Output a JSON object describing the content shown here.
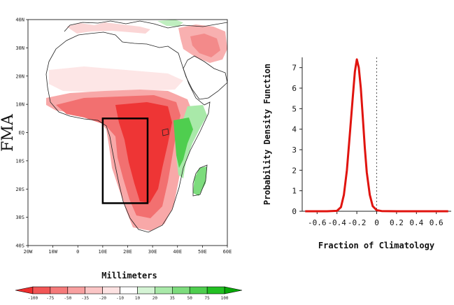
{
  "chart_data": [
    {
      "type": "map",
      "season_label": "FMA",
      "lon_ticks": [
        "20W",
        "10W",
        "0",
        "10E",
        "20E",
        "30E",
        "40E",
        "50E",
        "60E"
      ],
      "lat_ticks": [
        "40N",
        "30N",
        "20N",
        "10N",
        "EQ",
        "10S",
        "20S",
        "30S",
        "40S"
      ],
      "lon_range": [
        -20,
        60
      ],
      "lat_range": [
        -40,
        40
      ],
      "box_region": {
        "lon": [
          10,
          28
        ],
        "lat": [
          -25,
          5
        ]
      },
      "units_label": "Millimeters",
      "colorbar": {
        "ticks": [
          "-100",
          "-75",
          "-50",
          "-35",
          "-20",
          "-10",
          "10",
          "20",
          "35",
          "50",
          "75",
          "100"
        ],
        "colors": [
          "#ee2d2d",
          "#f25656",
          "#f57a7a",
          "#f8a0a0",
          "#fbc6c6",
          "#fde2e2",
          "#ffffff",
          "#d5f4d5",
          "#a9e9a9",
          "#7ddc7d",
          "#4fce4f",
          "#22c022",
          "#07a807"
        ]
      }
    },
    {
      "type": "line",
      "title": "",
      "xlabel": "Fraction of Climatology",
      "ylabel": "Probability Density Function",
      "xlim": [
        -0.75,
        0.75
      ],
      "ylim": [
        0,
        7.5
      ],
      "xticks": [
        -0.6,
        -0.4,
        -0.2,
        0,
        0.2,
        0.4,
        0.6
      ],
      "xtick_labels": [
        "-0.6",
        "-0.4",
        "-0.2",
        "0",
        "0.2",
        "0.4",
        "0.6"
      ],
      "yticks": [
        0,
        1,
        2,
        3,
        4,
        5,
        6,
        7
      ],
      "ytick_labels": [
        "0",
        "1",
        "2",
        "3",
        "4",
        "5",
        "6",
        "7"
      ],
      "series": [
        {
          "name": "PDF",
          "color": "#e0140f",
          "x": [
            -0.72,
            -0.5,
            -0.4,
            -0.36,
            -0.33,
            -0.3,
            -0.27,
            -0.24,
            -0.22,
            -0.2,
            -0.18,
            -0.16,
            -0.14,
            -0.12,
            -0.1,
            -0.07,
            -0.04,
            0.0,
            0.05,
            0.2,
            0.5,
            0.72
          ],
          "y": [
            0,
            0,
            0.02,
            0.2,
            0.8,
            2.0,
            3.8,
            5.6,
            6.8,
            7.4,
            7.0,
            6.0,
            4.6,
            3.1,
            1.9,
            0.8,
            0.25,
            0.05,
            0.01,
            0,
            0,
            0
          ]
        }
      ],
      "reference_line": {
        "x": 0,
        "style": "dotted"
      }
    }
  ]
}
